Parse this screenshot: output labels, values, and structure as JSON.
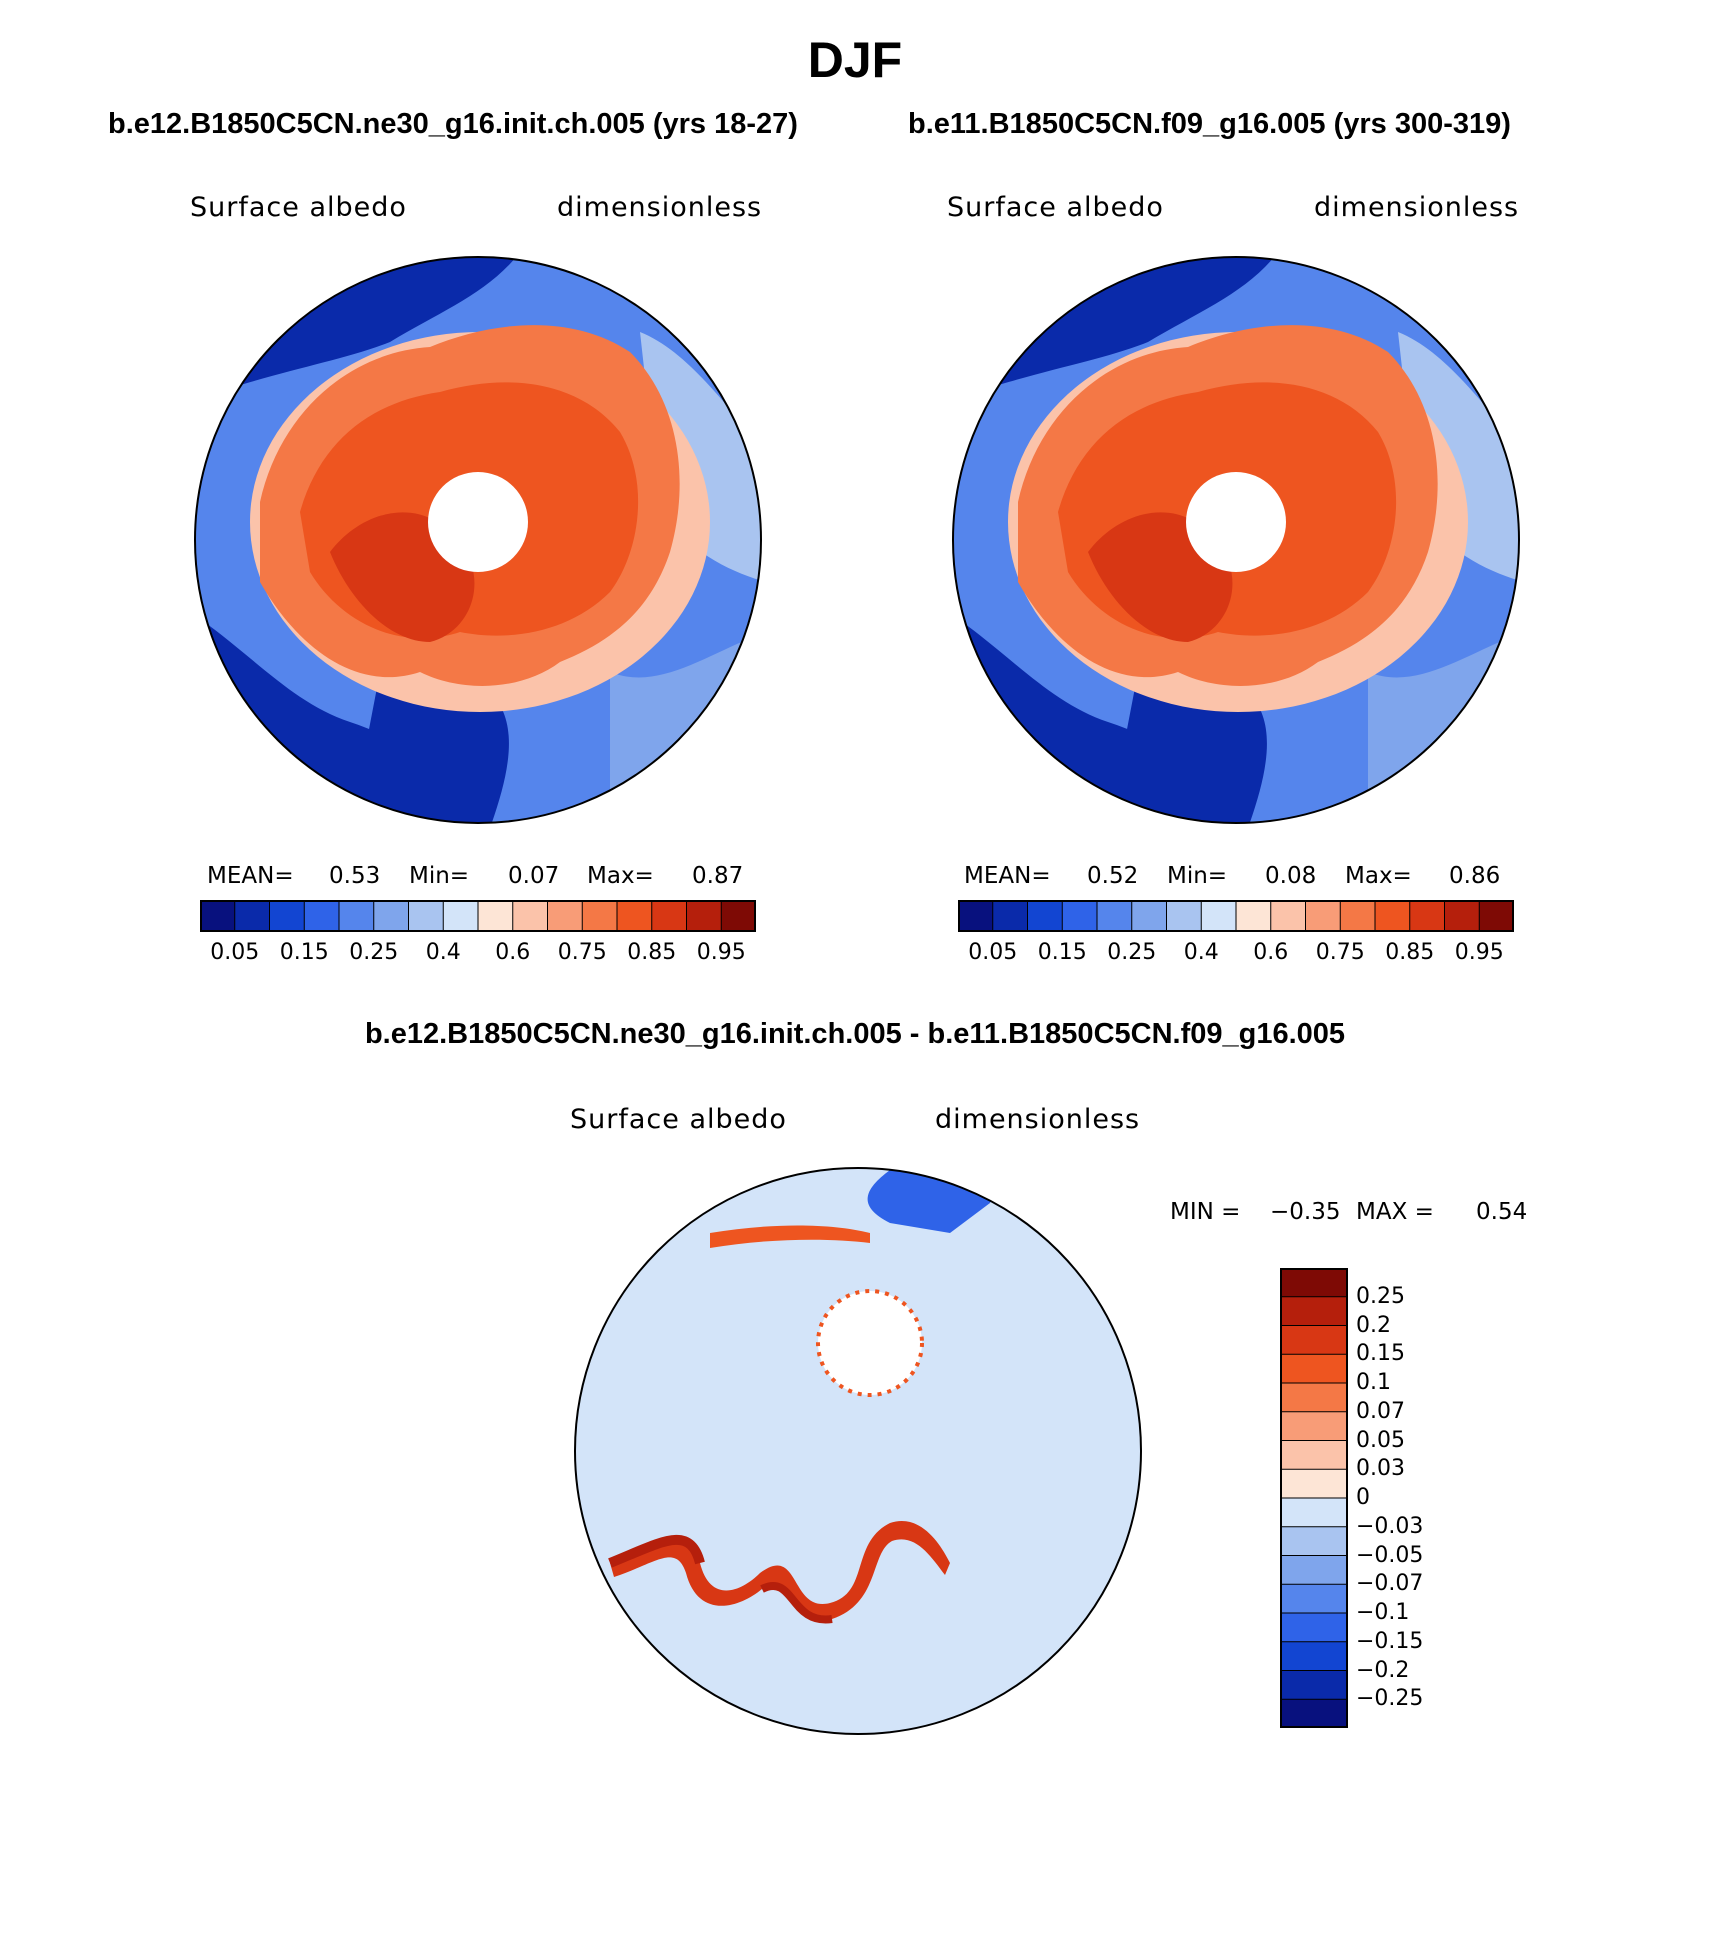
{
  "figure": {
    "title": "DJF"
  },
  "panels": [
    {
      "title": "b.e12.B1850C5CN.ne30_g16.init.ch.005 (yrs 18-27)",
      "variable": "Surface albedo",
      "units": "dimensionless",
      "stats": {
        "mean_label": "MEAN=",
        "mean": "0.53",
        "min_label": "Min=",
        "min": "0.07",
        "max_label": "Max=",
        "max": "0.87"
      }
    },
    {
      "title": "b.e11.B1850C5CN.f09_g16.005 (yrs 300-319)",
      "variable": "Surface albedo",
      "units": "dimensionless",
      "stats": {
        "mean_label": "MEAN=",
        "mean": "0.52",
        "min_label": "Min=",
        "min": "0.08",
        "max_label": "Max=",
        "max": "0.86"
      }
    }
  ],
  "colorbar_abs": {
    "tick_labels": [
      "0.05",
      "0.15",
      "0.25",
      "0.4",
      "0.6",
      "0.75",
      "0.85",
      "0.95"
    ],
    "colors": [
      "#08117e",
      "#0a2aaa",
      "#1245d2",
      "#2f63e8",
      "#5585ec",
      "#7fa5ec",
      "#a9c4f0",
      "#d3e4f9",
      "#fde5d6",
      "#fbc3aa",
      "#f89c77",
      "#f47846",
      "#ee5520",
      "#d83714",
      "#b51f0c",
      "#7e0a05"
    ]
  },
  "difference": {
    "title": "b.e12.B1850C5CN.ne30_g16.init.ch.005 - b.e11.B1850C5CN.f09_g16.005",
    "variable": "Surface albedo",
    "units": "dimensionless",
    "stats": {
      "min_label": "MIN =",
      "min": "−0.35",
      "max_label": "MAX =",
      "max": "0.54"
    }
  },
  "colorbar_diff": {
    "tick_labels": [
      "0.25",
      "0.2",
      "0.15",
      "0.1",
      "0.07",
      "0.05",
      "0.03",
      "0",
      "−0.03",
      "−0.05",
      "−0.07",
      "−0.1",
      "−0.15",
      "−0.2",
      "−0.25"
    ],
    "colors": [
      "#7e0a05",
      "#b51f0c",
      "#d83714",
      "#ee5520",
      "#f47846",
      "#f89c77",
      "#fbc3aa",
      "#fde5d6",
      "#d3e4f9",
      "#a9c4f0",
      "#7fa5ec",
      "#5585ec",
      "#2f63e8",
      "#1245d2",
      "#0a2aaa",
      "#08117e"
    ]
  },
  "map_colors": {
    "ocean_low": "#0a2aaa",
    "ocean_mid": "#5585ec",
    "ice_high": "#ee5520",
    "ice_mid": "#f47846",
    "transition": "#fbc3aa",
    "pale_blue": "#d3e4f9",
    "diff_background": "#d3e4f9",
    "diff_positive": "#d83714",
    "diff_negative": "#1245d2"
  }
}
